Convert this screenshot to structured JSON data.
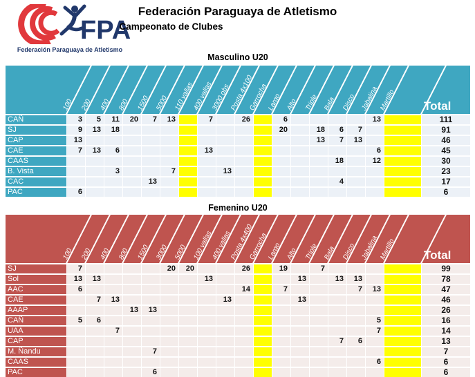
{
  "page": {
    "title": "Federación Paraguaya de Atletismo",
    "subtitle": "Campeonato de Clubes"
  },
  "logo": {
    "acronym": "FPA",
    "caption": "Federación Paraguaya de Atletismo",
    "red": "#E1383C",
    "navy": "#21386B"
  },
  "tables": [
    {
      "title": "Masculino U20",
      "total_label": "Total",
      "theme": {
        "header": "#3FA7C1",
        "cell": "#ECF1F7",
        "yellow": "#FFFF00"
      },
      "columns": [
        "100",
        "200",
        "400",
        "800",
        "1500",
        "5000",
        "110 vallas",
        "400 vallas",
        "3000 obs",
        "Posta 4x100",
        "Garrocha",
        "Largo",
        "Alto",
        "Triple",
        "Bala",
        "Disco",
        "Jabalina",
        "Martillo"
      ],
      "yellow_columns": [
        6,
        10,
        17
      ],
      "rows": [
        {
          "club": "CAÑ",
          "values": [
            "3",
            "5",
            "11",
            "20",
            "7",
            "13",
            "",
            "7",
            "",
            "26",
            "",
            "6",
            "",
            "",
            "",
            "",
            "13",
            ""
          ],
          "total": "111"
        },
        {
          "club": "SJ",
          "values": [
            "9",
            "13",
            "18",
            "",
            "",
            "",
            "",
            "",
            "",
            "",
            "",
            "20",
            "",
            "18",
            "6",
            "7",
            "",
            ""
          ],
          "total": "91"
        },
        {
          "club": "CAP",
          "values": [
            "13",
            "",
            "",
            "",
            "",
            "",
            "",
            "",
            "",
            "",
            "",
            "",
            "",
            "13",
            "7",
            "13",
            "",
            ""
          ],
          "total": "46"
        },
        {
          "club": "CAE",
          "values": [
            "7",
            "13",
            "6",
            "",
            "",
            "",
            "",
            "13",
            "",
            "",
            "",
            "",
            "",
            "",
            "",
            "",
            "6",
            ""
          ],
          "total": "45"
        },
        {
          "club": "CAAS",
          "values": [
            "",
            "",
            "",
            "",
            "",
            "",
            "",
            "",
            "",
            "",
            "",
            "",
            "",
            "",
            "18",
            "",
            "12",
            ""
          ],
          "total": "30"
        },
        {
          "club": "B. Vista",
          "values": [
            "",
            "",
            "3",
            "",
            "",
            "7",
            "",
            "",
            "13",
            "",
            "",
            "",
            "",
            "",
            "",
            "",
            "",
            ""
          ],
          "total": "23"
        },
        {
          "club": "CAC",
          "values": [
            "",
            "",
            "",
            "",
            "13",
            "",
            "",
            "",
            "",
            "",
            "",
            "",
            "",
            "",
            "4",
            "",
            "",
            ""
          ],
          "total": "17"
        },
        {
          "club": "PAC",
          "values": [
            "6",
            "",
            "",
            "",
            "",
            "",
            "",
            "",
            "",
            "",
            "",
            "",
            "",
            "",
            "",
            "",
            "",
            ""
          ],
          "total": "6"
        }
      ]
    },
    {
      "title": "Femenino U20",
      "total_label": "Total",
      "theme": {
        "header": "#BF544F",
        "cell": "#F4ECEA",
        "yellow": "#FFFF00"
      },
      "columns": [
        "100",
        "200",
        "400",
        "800",
        "1500",
        "3000",
        "5000",
        "100 vallas",
        "400 vallas",
        "Posta 4x400",
        "Garrocha",
        "Largo",
        "Alto",
        "Triple",
        "Bala",
        "Disco",
        "Jabalina",
        "Martillo"
      ],
      "yellow_columns": [
        10,
        17
      ],
      "rows": [
        {
          "club": "SJ",
          "values": [
            "7",
            "",
            "",
            "",
            "",
            "20",
            "20",
            "",
            "",
            "26",
            "",
            "19",
            "",
            "7",
            "",
            "",
            "",
            ""
          ],
          "total": "99"
        },
        {
          "club": "Sol",
          "values": [
            "13",
            "13",
            "",
            "",
            "",
            "",
            "",
            "13",
            "",
            "",
            "",
            "",
            "13",
            "",
            "13",
            "13",
            "",
            ""
          ],
          "total": "78"
        },
        {
          "club": "AAC",
          "values": [
            "6",
            "",
            "",
            "",
            "",
            "",
            "",
            "",
            "",
            "14",
            "",
            "7",
            "",
            "",
            "",
            "7",
            "13",
            ""
          ],
          "total": "47"
        },
        {
          "club": "CAE",
          "values": [
            "",
            "7",
            "13",
            "",
            "",
            "",
            "",
            "",
            "13",
            "",
            "",
            "",
            "13",
            "",
            "",
            "",
            "",
            ""
          ],
          "total": "46"
        },
        {
          "club": "AAAP",
          "values": [
            "",
            "",
            "",
            "13",
            "13",
            "",
            "",
            "",
            "",
            "",
            "",
            "",
            "",
            "",
            "",
            "",
            "",
            ""
          ],
          "total": "26"
        },
        {
          "club": "CAÑ",
          "values": [
            "5",
            "6",
            "",
            "",
            "",
            "",
            "",
            "",
            "",
            "",
            "",
            "",
            "",
            "",
            "",
            "",
            "5",
            ""
          ],
          "total": "16"
        },
        {
          "club": "UAA",
          "values": [
            "",
            "",
            "7",
            "",
            "",
            "",
            "",
            "",
            "",
            "",
            "",
            "",
            "",
            "",
            "",
            "",
            "7",
            ""
          ],
          "total": "14"
        },
        {
          "club": "CAP",
          "values": [
            "",
            "",
            "",
            "",
            "",
            "",
            "",
            "",
            "",
            "",
            "",
            "",
            "",
            "",
            "7",
            "6",
            "",
            ""
          ],
          "total": "13"
        },
        {
          "club": "M. Ñandu",
          "values": [
            "",
            "",
            "",
            "",
            "7",
            "",
            "",
            "",
            "",
            "",
            "",
            "",
            "",
            "",
            "",
            "",
            "",
            ""
          ],
          "total": "7"
        },
        {
          "club": "CAAS",
          "values": [
            "",
            "",
            "",
            "",
            "",
            "",
            "",
            "",
            "",
            "",
            "",
            "",
            "",
            "",
            "",
            "",
            "6",
            ""
          ],
          "total": "6"
        },
        {
          "club": "PAC",
          "values": [
            "",
            "",
            "",
            "",
            "6",
            "",
            "",
            "",
            "",
            "",
            "",
            "",
            "",
            "",
            "",
            "",
            "",
            ""
          ],
          "total": "6"
        }
      ]
    }
  ]
}
